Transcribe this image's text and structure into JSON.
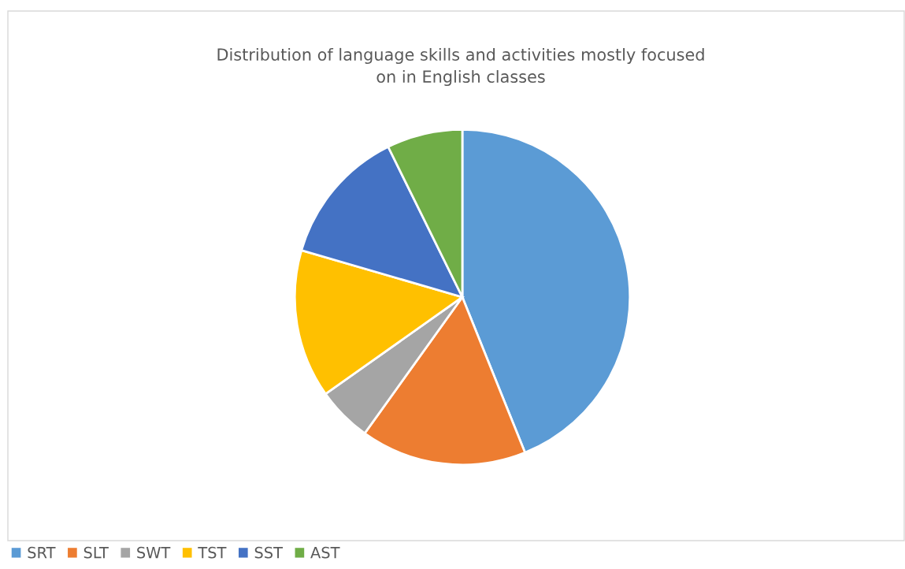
{
  "chart_data": {
    "type": "pie",
    "title": "Distribution of language skills and activities mostly focused\non in English classes",
    "categories": [
      "SRT",
      "SLT",
      "SWT",
      "TST",
      "SST",
      "AST"
    ],
    "values": [
      43.9,
      16.0,
      5.3,
      14.3,
      13.2,
      7.3
    ],
    "colors": [
      "#5b9bd5",
      "#ed7d31",
      "#a5a5a5",
      "#ffc000",
      "#4472c4",
      "#70ad47"
    ],
    "legend": "bottom left"
  }
}
